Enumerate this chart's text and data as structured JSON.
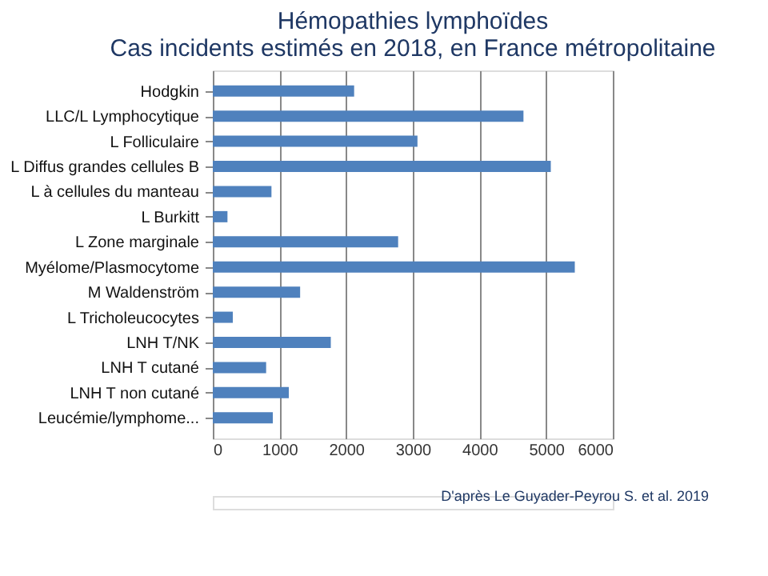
{
  "chart_data": {
    "type": "bar",
    "orientation": "horizontal",
    "title": [
      "Hémopathies lymphoïdes",
      "Cas incidents estimés en 2018, en France métropolitaine"
    ],
    "categories": [
      "Hodgkin",
      "LLC/L Lymphocytique",
      "L Folliculaire",
      "L Diffus grandes cellules B",
      "L à cellules du manteau",
      "L Burkitt",
      "L Zone marginale",
      "Myélome/Plasmocytome",
      "M Waldenström",
      "L Tricholeucocytes",
      "LNH T/NK",
      "LNH T cutané",
      "LNH T non cutané",
      "Leucémie/lymphome..."
    ],
    "values": [
      2120,
      4660,
      3070,
      5070,
      880,
      220,
      2780,
      5430,
      1310,
      300,
      1770,
      800,
      1140,
      900
    ],
    "color": "#4f81bd",
    "xlim": [
      0,
      6000
    ],
    "xticks": [
      0,
      1000,
      2000,
      3000,
      4000,
      5000,
      6000
    ],
    "grid": "x",
    "annotations": [
      "D'après Le Guyader-Peyrou S. et al. 2019"
    ]
  }
}
